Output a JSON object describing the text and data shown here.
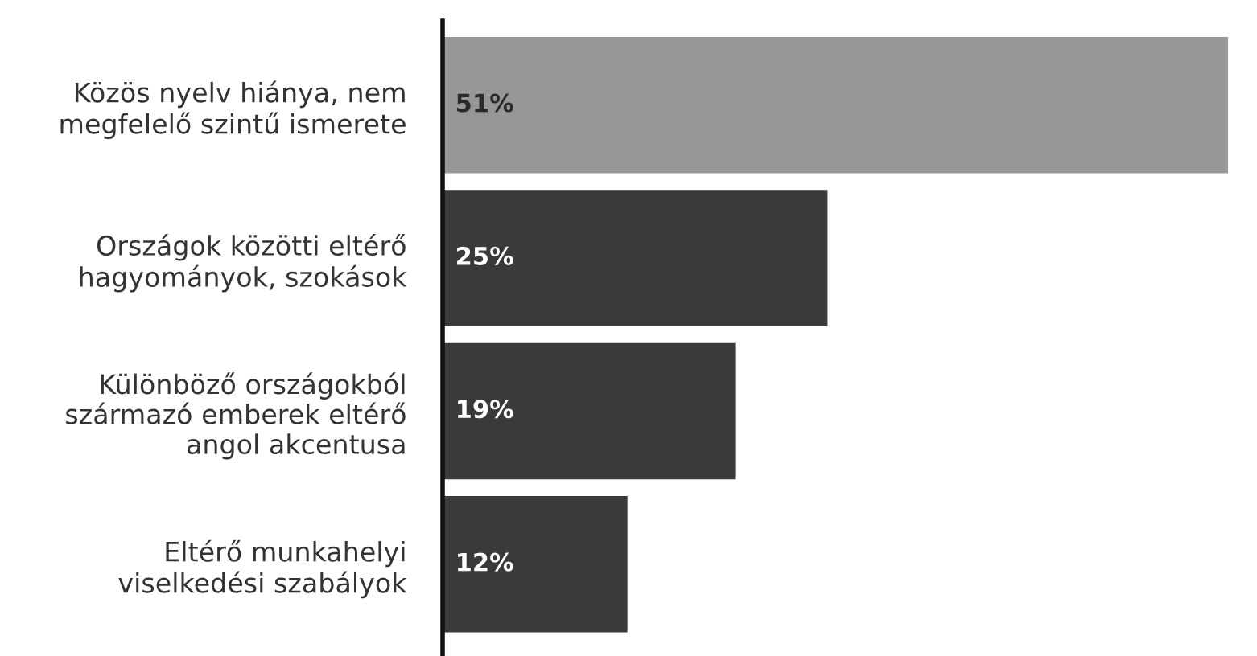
{
  "chart_data": {
    "type": "bar",
    "orientation": "horizontal",
    "categories": [
      "Közös nyelv hiánya, nem\nmegfelelő szintű ismerete",
      "Országok közötti eltérő\nhagyományok, szokások",
      "Különböző országokból\nszármazó emberek eltérő\nangol akcentusa",
      "Eltérő munkahelyi\nviselkedési szabályok"
    ],
    "values": [
      51,
      25,
      19,
      12
    ],
    "colors": [
      "#979797",
      "#3a3a3a",
      "#3a3a3a",
      "#3a3a3a"
    ],
    "value_labels": [
      "51%",
      "25%",
      "19%",
      "12%"
    ],
    "tick_labels": "y",
    "grid": false,
    "legend": false
  }
}
